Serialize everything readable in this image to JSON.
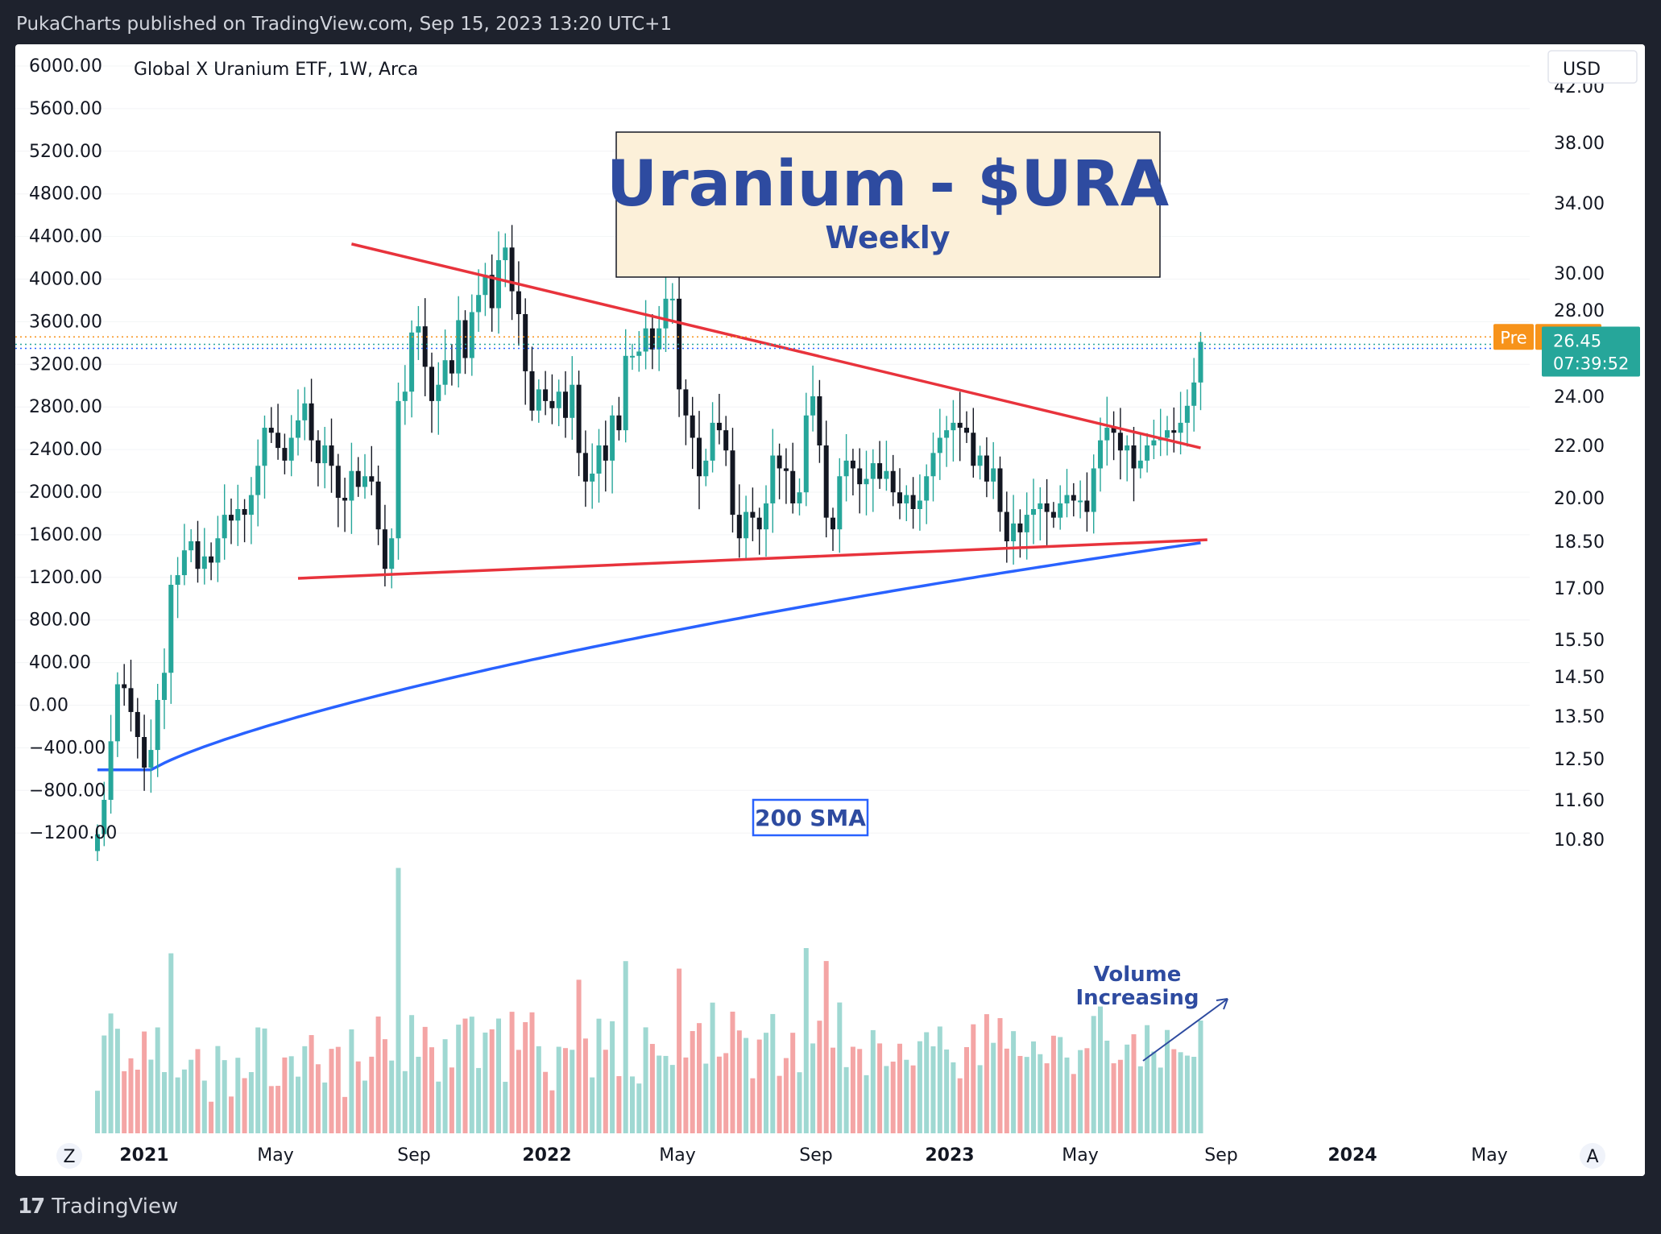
{
  "header": {
    "text": "PukaCharts published on TradingView.com, Sep 15, 2023 13:20 UTC+1"
  },
  "footer": {
    "brand": "TradingView",
    "logo_icon": "tradingview-logo-icon"
  },
  "symbol": {
    "title": "Global X Uranium ETF, 1W, Arca"
  },
  "currency_button": "USD",
  "scale_buttons": {
    "left": "Z",
    "right": "A"
  },
  "title_box": {
    "title": "Uranium - $URA",
    "subtitle": "Weekly"
  },
  "labels": {
    "sma": "200 SMA",
    "volume_line1": "Volume",
    "volume_line2": "Increasing",
    "pre_tag": "Pre",
    "pre_price": "26.69",
    "last_price": "26.45",
    "countdown": "07:39:52"
  },
  "colors": {
    "up": "#26a69a",
    "down": "#131722",
    "vol_up": "#9fd8d2",
    "vol_down": "#f4a5a5",
    "trendline": "#e8333c",
    "sma": "#2962ff",
    "title_bg": "#fcf0d9",
    "title_text": "#2e4ba0",
    "pre_tag": "#f7931a",
    "last_tag": "#26a69a"
  },
  "chart_data": {
    "type": "candlestick",
    "interval": "1W",
    "y_left_ticks": [
      "6000.00",
      "5600.00",
      "5200.00",
      "4800.00",
      "4400.00",
      "4000.00",
      "3600.00",
      "3200.00",
      "2800.00",
      "2400.00",
      "2000.00",
      "1600.00",
      "1200.00",
      "800.00",
      "400.00",
      "0.00",
      "−400.00",
      "−800.00",
      "−1200.00"
    ],
    "y_right_ticks": [
      "42.00",
      "38.00",
      "34.00",
      "30.00",
      "28.00",
      "24.00",
      "22.00",
      "20.00",
      "18.50",
      "17.00",
      "15.50",
      "14.50",
      "13.50",
      "12.50",
      "11.60",
      "10.80"
    ],
    "x_ticks": [
      {
        "label": "2021",
        "bold": true
      },
      {
        "label": "May",
        "bold": false
      },
      {
        "label": "Sep",
        "bold": false
      },
      {
        "label": "2022",
        "bold": true
      },
      {
        "label": "May",
        "bold": false
      },
      {
        "label": "Sep",
        "bold": false
      },
      {
        "label": "2023",
        "bold": true
      },
      {
        "label": "May",
        "bold": false
      },
      {
        "label": "Sep",
        "bold": false
      },
      {
        "label": "2024",
        "bold": true
      },
      {
        "label": "May",
        "bold": false
      }
    ],
    "closes": [
      10.9,
      11.6,
      12.9,
      14.3,
      14.2,
      13.6,
      13.0,
      12.3,
      12.7,
      13.9,
      14.6,
      17.1,
      17.4,
      18.2,
      18.5,
      17.6,
      18.0,
      17.8,
      18.6,
      19.4,
      19.2,
      19.6,
      19.4,
      20.1,
      21.2,
      22.7,
      22.5,
      21.9,
      21.4,
      22.3,
      23.0,
      23.7,
      22.2,
      21.3,
      22.0,
      21.2,
      20.0,
      19.9,
      21.0,
      20.4,
      20.8,
      20.6,
      18.9,
      17.6,
      18.6,
      23.8,
      24.2,
      26.9,
      27.2,
      25.3,
      23.8,
      24.5,
      25.6,
      25.0,
      27.5,
      25.7,
      27.9,
      28.8,
      29.9,
      28.1,
      30.7,
      31.4,
      29.0,
      27.8,
      25.1,
      23.4,
      24.3,
      23.8,
      23.5,
      24.2,
      23.1,
      24.5,
      21.7,
      20.6,
      20.9,
      22.0,
      21.4,
      23.2,
      22.6,
      25.8,
      25.8,
      26.0,
      27.1,
      26.1,
      27.1,
      28.6,
      28.6,
      24.3,
      23.2,
      22.3,
      20.8,
      21.4,
      22.9,
      22.6,
      21.8,
      19.4,
      18.6,
      19.5,
      19.3,
      18.9,
      19.8,
      21.6,
      21.1,
      21.0,
      19.8,
      20.2,
      23.2,
      24.0,
      22.0,
      19.3,
      18.9,
      20.8,
      21.4,
      21.1,
      20.5,
      20.7,
      21.3,
      20.7,
      21.0,
      20.2,
      19.8,
      20.1,
      19.6,
      19.9,
      20.8,
      21.7,
      22.3,
      22.6,
      22.9,
      22.7,
      22.5,
      21.2,
      21.6,
      20.6,
      21.1,
      19.5,
      18.5,
      19.1,
      18.8,
      19.4,
      19.6,
      19.8,
      19.5,
      19.3,
      19.8,
      20.1,
      19.9,
      19.9,
      19.5,
      21.1,
      22.2,
      22.7,
      22.5,
      21.8,
      22.0,
      21.1,
      21.4,
      22.0,
      22.2,
      22.3,
      22.6,
      22.5,
      22.9,
      23.6,
      24.6,
      26.45
    ],
    "last_price": 26.45,
    "pre_market_price": 26.69,
    "sma200": {
      "start": 12.25,
      "end": 18.45
    },
    "annotations": [
      "Uranium - $URA",
      "Weekly",
      "200 SMA",
      "Volume Increasing"
    ]
  }
}
